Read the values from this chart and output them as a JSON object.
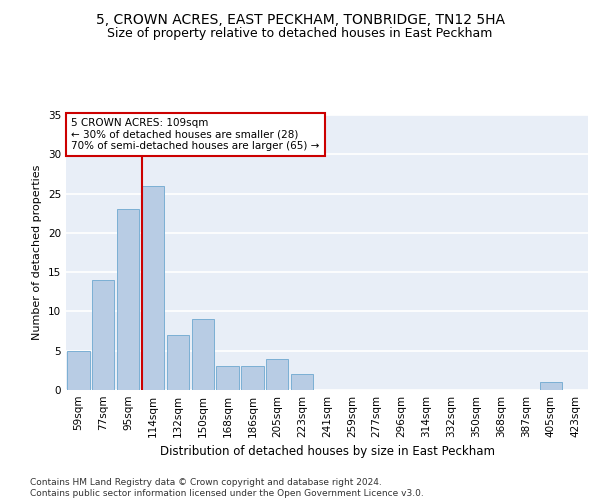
{
  "title": "5, CROWN ACRES, EAST PECKHAM, TONBRIDGE, TN12 5HA",
  "subtitle": "Size of property relative to detached houses in East Peckham",
  "xlabel": "Distribution of detached houses by size in East Peckham",
  "ylabel": "Number of detached properties",
  "categories": [
    "59sqm",
    "77sqm",
    "95sqm",
    "114sqm",
    "132sqm",
    "150sqm",
    "168sqm",
    "186sqm",
    "205sqm",
    "223sqm",
    "241sqm",
    "259sqm",
    "277sqm",
    "296sqm",
    "314sqm",
    "332sqm",
    "350sqm",
    "368sqm",
    "387sqm",
    "405sqm",
    "423sqm"
  ],
  "values": [
    5,
    14,
    23,
    26,
    7,
    9,
    3,
    3,
    4,
    2,
    0,
    0,
    0,
    0,
    0,
    0,
    0,
    0,
    0,
    1,
    0
  ],
  "bar_color": "#b8cce4",
  "bar_edge_color": "#7bafd4",
  "vline_color": "#cc0000",
  "annotation_text": "5 CROWN ACRES: 109sqm\n← 30% of detached houses are smaller (28)\n70% of semi-detached houses are larger (65) →",
  "annotation_box_color": "#ffffff",
  "annotation_box_edge_color": "#cc0000",
  "ylim": [
    0,
    35
  ],
  "yticks": [
    0,
    5,
    10,
    15,
    20,
    25,
    30,
    35
  ],
  "bg_color": "#e8eef7",
  "footer": "Contains HM Land Registry data © Crown copyright and database right 2024.\nContains public sector information licensed under the Open Government Licence v3.0.",
  "title_fontsize": 10,
  "subtitle_fontsize": 9,
  "ylabel_fontsize": 8,
  "xlabel_fontsize": 8.5,
  "tick_fontsize": 7.5,
  "footer_fontsize": 6.5
}
